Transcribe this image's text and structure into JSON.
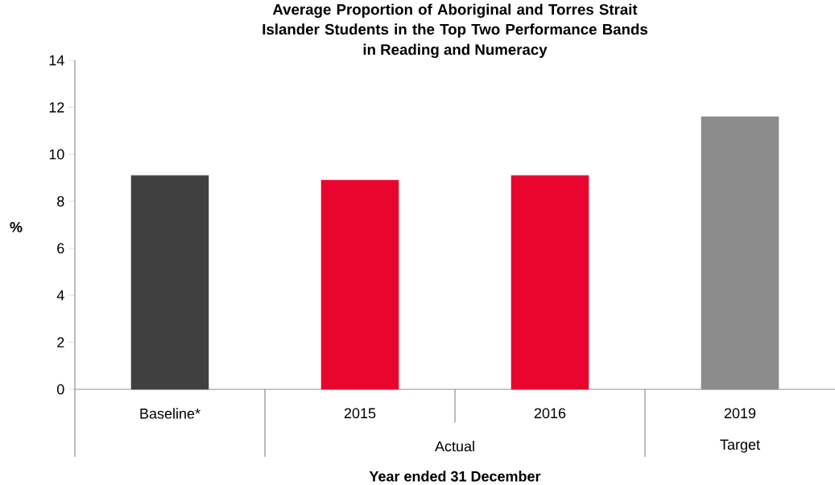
{
  "chart_data": {
    "type": "bar",
    "title": "Average Proportion of Aboriginal and Torres Strait Islander Students in the Top Two Performance Bands",
    "subtitle": "in Reading and Numeracy",
    "categories": [
      "Baseline*",
      "2015",
      "2016",
      "2019"
    ],
    "values": [
      9.1,
      8.9,
      9.1,
      11.6
    ],
    "colors": [
      "#404040",
      "#e8062f",
      "#e8062f",
      "#8c8c8c"
    ],
    "ylabel": "%",
    "xlabel": "Year ended 31 December",
    "annotations": [
      "Actual",
      "Target"
    ],
    "ylim": [
      0,
      14
    ],
    "yticks": [
      0,
      2,
      4,
      6,
      8,
      10,
      12,
      14
    ],
    "grid": false
  }
}
